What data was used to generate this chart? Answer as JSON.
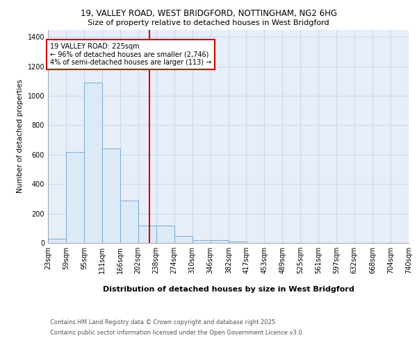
{
  "title_line1": "19, VALLEY ROAD, WEST BRIDGFORD, NOTTINGHAM, NG2 6HG",
  "title_line2": "Size of property relative to detached houses in West Bridgford",
  "xlabel": "Distribution of detached houses by size in West Bridgford",
  "ylabel": "Number of detached properties",
  "bin_edges": [
    23,
    59,
    95,
    131,
    166,
    202,
    238,
    274,
    310,
    346,
    382,
    417,
    453,
    489,
    525,
    561,
    597,
    632,
    668,
    704,
    740
  ],
  "bin_labels": [
    "23sqm",
    "59sqm",
    "95sqm",
    "131sqm",
    "166sqm",
    "202sqm",
    "238sqm",
    "274sqm",
    "310sqm",
    "346sqm",
    "382sqm",
    "417sqm",
    "453sqm",
    "489sqm",
    "525sqm",
    "561sqm",
    "597sqm",
    "632sqm",
    "668sqm",
    "704sqm",
    "740sqm"
  ],
  "bar_heights": [
    30,
    620,
    1090,
    640,
    290,
    120,
    120,
    48,
    20,
    20,
    10,
    0,
    0,
    0,
    0,
    0,
    0,
    0,
    0,
    0
  ],
  "bar_color": "#dce9f7",
  "bar_edge_color": "#7aadd4",
  "grid_color": "#c8d8ee",
  "background_color": "#e8eef8",
  "red_line_x": 225,
  "annotation_text": "19 VALLEY ROAD: 225sqm\n← 96% of detached houses are smaller (2,746)\n4% of semi-detached houses are larger (113) →",
  "annotation_box_color": "#ffffff",
  "annotation_box_edgecolor": "#cc0000",
  "footer_line1": "Contains HM Land Registry data © Crown copyright and database right 2025.",
  "footer_line2": "Contains public sector information licensed under the Open Government Licence v3.0.",
  "ylim": [
    0,
    1450
  ],
  "yticks": [
    0,
    200,
    400,
    600,
    800,
    1000,
    1200,
    1400
  ]
}
